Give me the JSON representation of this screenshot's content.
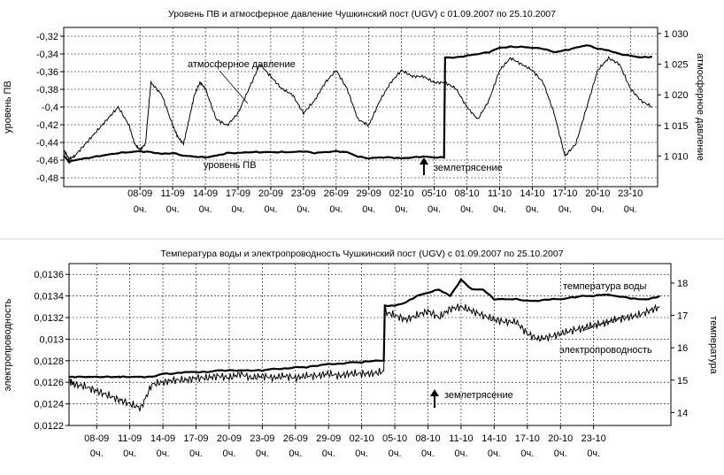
{
  "chart_data": [
    {
      "type": "line",
      "title": "Уровень ПВ и атмосферное давление Чушкинский пост (UGV) с 01.09.2007 по 25.10.2007",
      "ylabel_left": "уровень ПВ",
      "ylabel_right": "атмосферное давление",
      "y_left_ticks": [
        "-0,32",
        "-0,34",
        "-0,36",
        "-0,38",
        "-0,4",
        "-0,42",
        "-0,44",
        "-0,46",
        "-0,48"
      ],
      "y_right_ticks": [
        "1 030",
        "1 025",
        "1 020",
        "1 015",
        "1 010"
      ],
      "ylim_left": [
        -0.49,
        -0.31
      ],
      "ylim_right": [
        1005,
        1031
      ],
      "x_tick_labels": [
        "08-09",
        "11-09",
        "14-09",
        "17-09",
        "20-09",
        "23-09",
        "26-09",
        "29-09",
        "02-10",
        "05-10",
        "08-10",
        "11-10",
        "14-10",
        "17-10",
        "20-10",
        "23-10"
      ],
      "x_tick_sublabel": "0ч.",
      "x_range_days": [
        0,
        54.5
      ],
      "x_tick_days": [
        7,
        10,
        13,
        16,
        19,
        22,
        25,
        28,
        31,
        34,
        37,
        40,
        43,
        46,
        49,
        52
      ],
      "grid": true,
      "series": [
        {
          "name": "уровень ПВ",
          "axis": "left",
          "x": [
            0,
            0.5,
            1,
            2,
            3,
            4,
            5,
            6,
            7,
            8,
            9,
            10,
            11,
            12,
            13,
            14,
            15,
            16,
            17,
            18,
            19,
            20,
            21,
            22,
            23,
            24,
            25,
            26,
            27,
            28,
            29,
            30,
            31,
            32,
            33,
            34,
            34.9,
            35,
            36,
            37,
            38,
            39,
            40,
            41,
            42,
            43,
            44,
            45,
            46,
            47,
            48,
            49,
            50,
            51,
            52,
            53,
            54
          ],
          "y": [
            -0.455,
            -0.462,
            -0.46,
            -0.458,
            -0.456,
            -0.454,
            -0.452,
            -0.451,
            -0.45,
            -0.451,
            -0.453,
            -0.452,
            -0.455,
            -0.456,
            -0.457,
            -0.455,
            -0.452,
            -0.452,
            -0.451,
            -0.451,
            -0.451,
            -0.451,
            -0.451,
            -0.45,
            -0.452,
            -0.451,
            -0.45,
            -0.451,
            -0.456,
            -0.458,
            -0.457,
            -0.457,
            -0.458,
            -0.457,
            -0.456,
            -0.457,
            -0.457,
            -0.344,
            -0.344,
            -0.342,
            -0.34,
            -0.338,
            -0.333,
            -0.332,
            -0.332,
            -0.333,
            -0.334,
            -0.338,
            -0.336,
            -0.333,
            -0.33,
            -0.334,
            -0.336,
            -0.34,
            -0.342,
            -0.344,
            -0.343
          ]
        },
        {
          "name": "атмосферное давление",
          "axis": "right",
          "x": [
            0,
            0.5,
            1,
            2,
            3,
            4,
            5,
            6,
            6.5,
            7,
            7.5,
            8,
            9,
            10,
            10.5,
            11,
            11.5,
            12,
            12.5,
            13,
            14,
            15,
            16,
            17,
            18,
            19,
            20,
            21,
            22,
            23,
            24,
            25,
            26,
            27,
            28,
            29,
            30,
            31,
            32,
            33,
            34,
            35,
            36,
            37,
            38,
            39,
            40,
            41,
            42,
            43,
            44,
            45,
            46,
            47,
            48,
            49,
            50,
            51,
            52,
            53,
            54
          ],
          "y": [
            1011,
            1009.5,
            1010,
            1012,
            1014,
            1016,
            1018,
            1015,
            1012,
            1011,
            1012,
            1022,
            1020,
            1015,
            1013,
            1012,
            1016,
            1020,
            1022,
            1021,
            1016,
            1015,
            1017,
            1021,
            1025,
            1023,
            1021,
            1020,
            1017,
            1019,
            1022,
            1024,
            1021,
            1016,
            1015,
            1019,
            1022,
            1024,
            1023,
            1023,
            1022,
            1022,
            1021,
            1018,
            1016,
            1019,
            1024,
            1026,
            1025,
            1024,
            1022,
            1017,
            1010,
            1012,
            1018,
            1024,
            1026,
            1025,
            1021,
            1019,
            1018
          ]
        }
      ],
      "annotations": [
        "атмосферное давление",
        "уровень ПВ",
        "землетрясение"
      ]
    },
    {
      "type": "line",
      "title": "Температура воды и электропроводность Чушкинский пост (UGV) с 01.09.2007 по 25.10.2007",
      "ylabel_left": "электропроводность",
      "ylabel_right": "температура",
      "y_left_ticks": [
        "0,0136",
        "0,0134",
        "0,0132",
        "0,013",
        "0,0128",
        "0,0126",
        "0,0124",
        "0,0122"
      ],
      "y_right_ticks": [
        "18",
        "17",
        "16",
        "15",
        "14"
      ],
      "ylim_left": [
        0.0122,
        0.0137
      ],
      "ylim_right": [
        13.6,
        18.6
      ],
      "x_tick_labels": [
        "08-09",
        "11-09",
        "14-09",
        "17-09",
        "20-09",
        "23-09",
        "26-09",
        "29-09",
        "02-10",
        "05-10",
        "08-10",
        "11-10",
        "14-10",
        "17-10",
        "20-10",
        "23-10"
      ],
      "x_tick_sublabel": "0ч.",
      "x_range_days": [
        4.5,
        59
      ],
      "x_tick_days": [
        7,
        10,
        13,
        16,
        19,
        22,
        25,
        28,
        31,
        34,
        37,
        40,
        43,
        46,
        49,
        52
      ],
      "grid": true,
      "series": [
        {
          "name": "температура воды",
          "axis": "right",
          "x": [
            4.5,
            5,
            6,
            7,
            8,
            9,
            9.1,
            10,
            11,
            12,
            13,
            14,
            15,
            16,
            17,
            18,
            19,
            20,
            21,
            22,
            23,
            24,
            25,
            26,
            27,
            28,
            29,
            30,
            31,
            32,
            33,
            33.1,
            34,
            35,
            36,
            37,
            38,
            39,
            40,
            41,
            42,
            43,
            44,
            45,
            46,
            47,
            48,
            49,
            50,
            51,
            52,
            53,
            54,
            55,
            56,
            57,
            58
          ],
          "y": [
            15.1,
            15.1,
            15.1,
            15.1,
            15.1,
            15.1,
            15.1,
            15.1,
            15.1,
            15.1,
            15.2,
            15.2,
            15.25,
            15.25,
            15.25,
            15.3,
            15.3,
            15.3,
            15.3,
            15.3,
            15.35,
            15.35,
            15.4,
            15.4,
            15.45,
            15.5,
            15.5,
            15.55,
            15.55,
            15.6,
            15.6,
            17.3,
            17.3,
            17.4,
            17.6,
            17.7,
            17.8,
            17.6,
            18.1,
            17.8,
            17.8,
            17.5,
            17.5,
            17.5,
            17.45,
            17.45,
            17.5,
            17.5,
            17.55,
            17.6,
            17.6,
            17.65,
            17.6,
            17.55,
            17.5,
            17.5,
            17.6
          ]
        },
        {
          "name": "электропроводность",
          "axis": "left",
          "x": [
            4.5,
            5,
            6,
            7,
            8,
            9,
            10,
            11,
            12,
            13,
            14,
            15,
            16,
            17,
            18,
            19,
            20,
            21,
            22,
            23,
            24,
            25,
            26,
            27,
            28,
            29,
            30,
            31,
            32,
            33,
            33.1,
            34,
            35,
            36,
            37,
            38,
            39,
            40,
            41,
            42,
            43,
            44,
            45,
            46,
            47,
            48,
            49,
            50,
            51,
            52,
            53,
            54,
            55,
            56,
            57,
            58
          ],
          "y": [
            0.01262,
            0.01258,
            0.01256,
            0.01252,
            0.01248,
            0.01244,
            0.0124,
            0.01236,
            0.01258,
            0.0126,
            0.01262,
            0.01262,
            0.01264,
            0.01264,
            0.01266,
            0.01264,
            0.01268,
            0.01264,
            0.01266,
            0.01264,
            0.01266,
            0.01264,
            0.01266,
            0.01266,
            0.01268,
            0.01266,
            0.01268,
            0.01268,
            0.01268,
            0.0127,
            0.01325,
            0.01322,
            0.01318,
            0.01322,
            0.01326,
            0.0132,
            0.01328,
            0.0133,
            0.01326,
            0.01322,
            0.01318,
            0.01316,
            0.01316,
            0.01305,
            0.013,
            0.01302,
            0.01305,
            0.01308,
            0.0131,
            0.01313,
            0.01315,
            0.01318,
            0.0132,
            0.01322,
            0.01326,
            0.0133
          ]
        }
      ],
      "annotations": [
        "температура воды",
        "электропроводность",
        "землетрясение"
      ]
    }
  ]
}
